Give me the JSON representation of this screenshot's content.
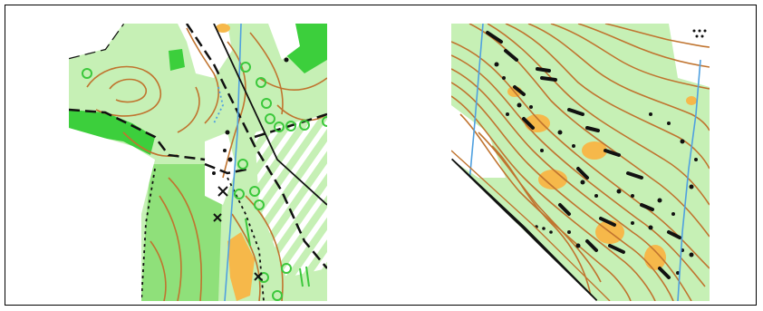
{
  "figure": {
    "panels": [
      {
        "id": "left",
        "description_key": "mixed-terrain-orienteering-map",
        "features": [
          "open-land",
          "forest",
          "marsh",
          "paths",
          "vegetation-boundaries",
          "contours",
          "green-circles",
          "stream",
          "crossings"
        ]
      },
      {
        "id": "right",
        "description_key": "steep-slope-orienteering-map",
        "features": [
          "dense-contours",
          "rock-boulders",
          "cliffs",
          "orange-rough-open",
          "streams",
          "black-road"
        ]
      }
    ]
  },
  "colors": {
    "frame": "#000000",
    "background": "#ffffff",
    "forest_light": "#c6f0b5",
    "forest_medium": "#8fe07a",
    "forest_dark": "#3ccf3c",
    "open_yellow": "#ffd27a",
    "rough_orange": "#f6b84a",
    "contour_brown": "#c0742f",
    "water_blue": "#4fa0e0",
    "feature_black": "#111111",
    "circle_green": "#3cc83c"
  }
}
